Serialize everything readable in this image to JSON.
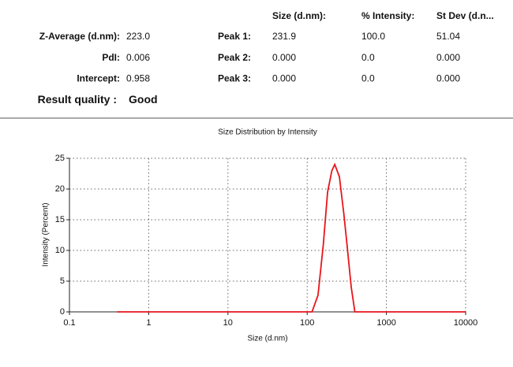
{
  "results": {
    "summary": [
      {
        "label": "Z-Average (d.nm):",
        "value": "223.0",
        "label_color": "#e8141b",
        "value_color": "#e8141b"
      },
      {
        "label": "PdI:",
        "value": "0.006",
        "label_color": "#e8141b",
        "value_color": "#e8141b"
      },
      {
        "label": "Intercept:",
        "value": "0.958"
      },
      {
        "label": "Result quality :",
        "value": "Good",
        "value_color": "#1aa33a"
      }
    ],
    "peak_header": [
      "Size (d.nm):",
      "% Intensity:",
      "St Dev (d.n..."
    ],
    "peaks": [
      [
        "Peak 1:",
        "231.9",
        "100.0",
        "51.04"
      ],
      [
        "Peak 2:",
        "0.000",
        "0.0",
        "0.000"
      ],
      [
        "Peak 3:",
        "0.000",
        "0.0",
        "0.000"
      ]
    ]
  },
  "chart_data": {
    "type": "line",
    "title": "Size Distribution by Intensity",
    "x_label": "Size (d.nm)",
    "y_label": "Intensity (Percent)",
    "xscale": "log",
    "x": [
      0.4,
      1,
      10,
      100,
      115,
      137,
      160,
      181,
      205,
      223,
      255,
      290,
      318,
      360,
      400,
      1000,
      10000
    ],
    "values": [
      0,
      0,
      0,
      0,
      0,
      2.7,
      11,
      19.5,
      23,
      24,
      22,
      16,
      11,
      4,
      0,
      0,
      0
    ],
    "color": "#e8141b",
    "xlim": [
      0.1,
      10000
    ],
    "xticks": [
      0.1,
      1,
      10,
      100,
      1000,
      10000
    ],
    "ylim": [
      0,
      25
    ],
    "yticks": [
      0,
      5,
      10,
      15,
      20,
      25
    ],
    "grid": true
  }
}
